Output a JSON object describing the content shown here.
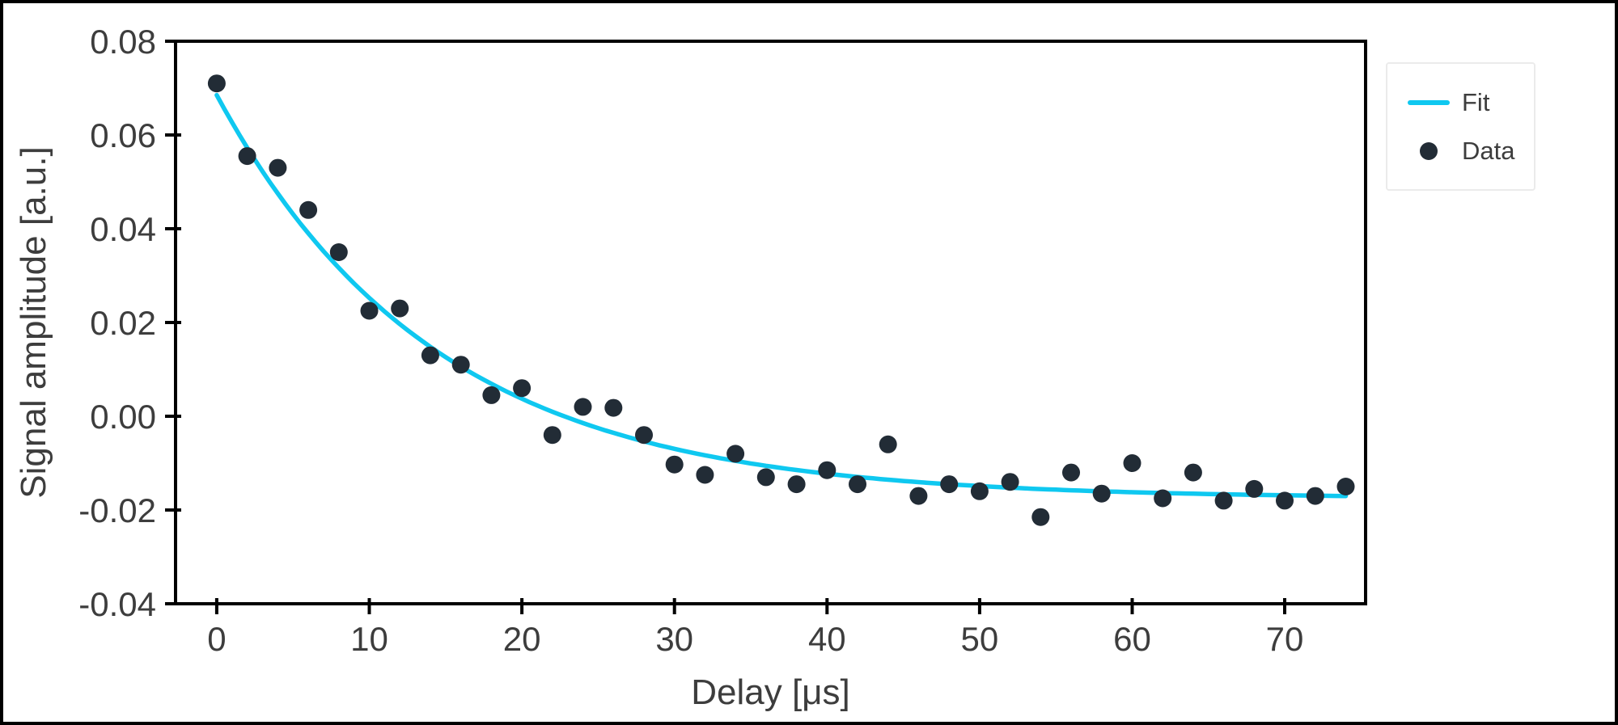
{
  "figure": {
    "background": "#ffffff",
    "border_color": "#000000",
    "spine_color": "#000000",
    "tick_label_color": "#3d3d3d"
  },
  "chart_data": {
    "type": "scatter",
    "title": "",
    "xlabel": "Delay [μs]",
    "ylabel": "Signal amplitude [a.u.]",
    "grid": false,
    "xlim": [
      -2.7,
      75.3
    ],
    "ylim": [
      -0.04,
      0.08
    ],
    "x_ticks": {
      "values": [
        0,
        10,
        20,
        30,
        40,
        50,
        60,
        70
      ],
      "labels": [
        "0",
        "10",
        "20",
        "30",
        "40",
        "50",
        "60",
        "70"
      ]
    },
    "y_ticks": {
      "values": [
        0.08,
        0.06,
        0.04,
        0.02,
        0.0,
        -0.02,
        -0.04
      ],
      "labels": [
        "0.08",
        "0.06",
        "0.04",
        "0.02",
        "0.00",
        "-0.02",
        "-0.04"
      ]
    },
    "legend": {
      "position": "outside-top-right",
      "entries": [
        {
          "label": "Fit",
          "type": "line",
          "color": "#0fc8f0"
        },
        {
          "label": "Data",
          "type": "marker",
          "color": "#222c36"
        }
      ]
    },
    "series": [
      {
        "name": "Data",
        "type": "scatter",
        "color": "#222c36",
        "x": [
          0,
          2,
          4,
          6,
          8,
          10,
          12,
          14,
          16,
          18,
          20,
          22,
          24,
          26,
          28,
          30,
          32,
          34,
          36,
          38,
          40,
          42,
          44,
          46,
          48,
          50,
          52,
          54,
          56,
          58,
          60,
          62,
          64,
          66,
          68,
          70,
          72,
          74
        ],
        "y": [
          0.071,
          0.0555,
          0.053,
          0.044,
          0.035,
          0.0225,
          0.023,
          0.013,
          0.011,
          0.0045,
          0.006,
          -0.004,
          0.002,
          0.0018,
          -0.004,
          -0.0103,
          -0.0125,
          -0.008,
          -0.013,
          -0.0145,
          -0.0115,
          -0.0145,
          -0.006,
          -0.017,
          -0.0145,
          -0.016,
          -0.014,
          -0.0215,
          -0.012,
          -0.0165,
          -0.01,
          -0.0175,
          -0.012,
          -0.018,
          -0.0155,
          -0.018,
          -0.017,
          -0.015
        ]
      },
      {
        "name": "Fit",
        "type": "line",
        "color": "#0fc8f0",
        "model": "y = C + A*exp(-t/tau)",
        "params": {
          "A": 0.086,
          "C": -0.0175,
          "tau": 14.3
        },
        "t_range": [
          0,
          74
        ]
      }
    ]
  }
}
